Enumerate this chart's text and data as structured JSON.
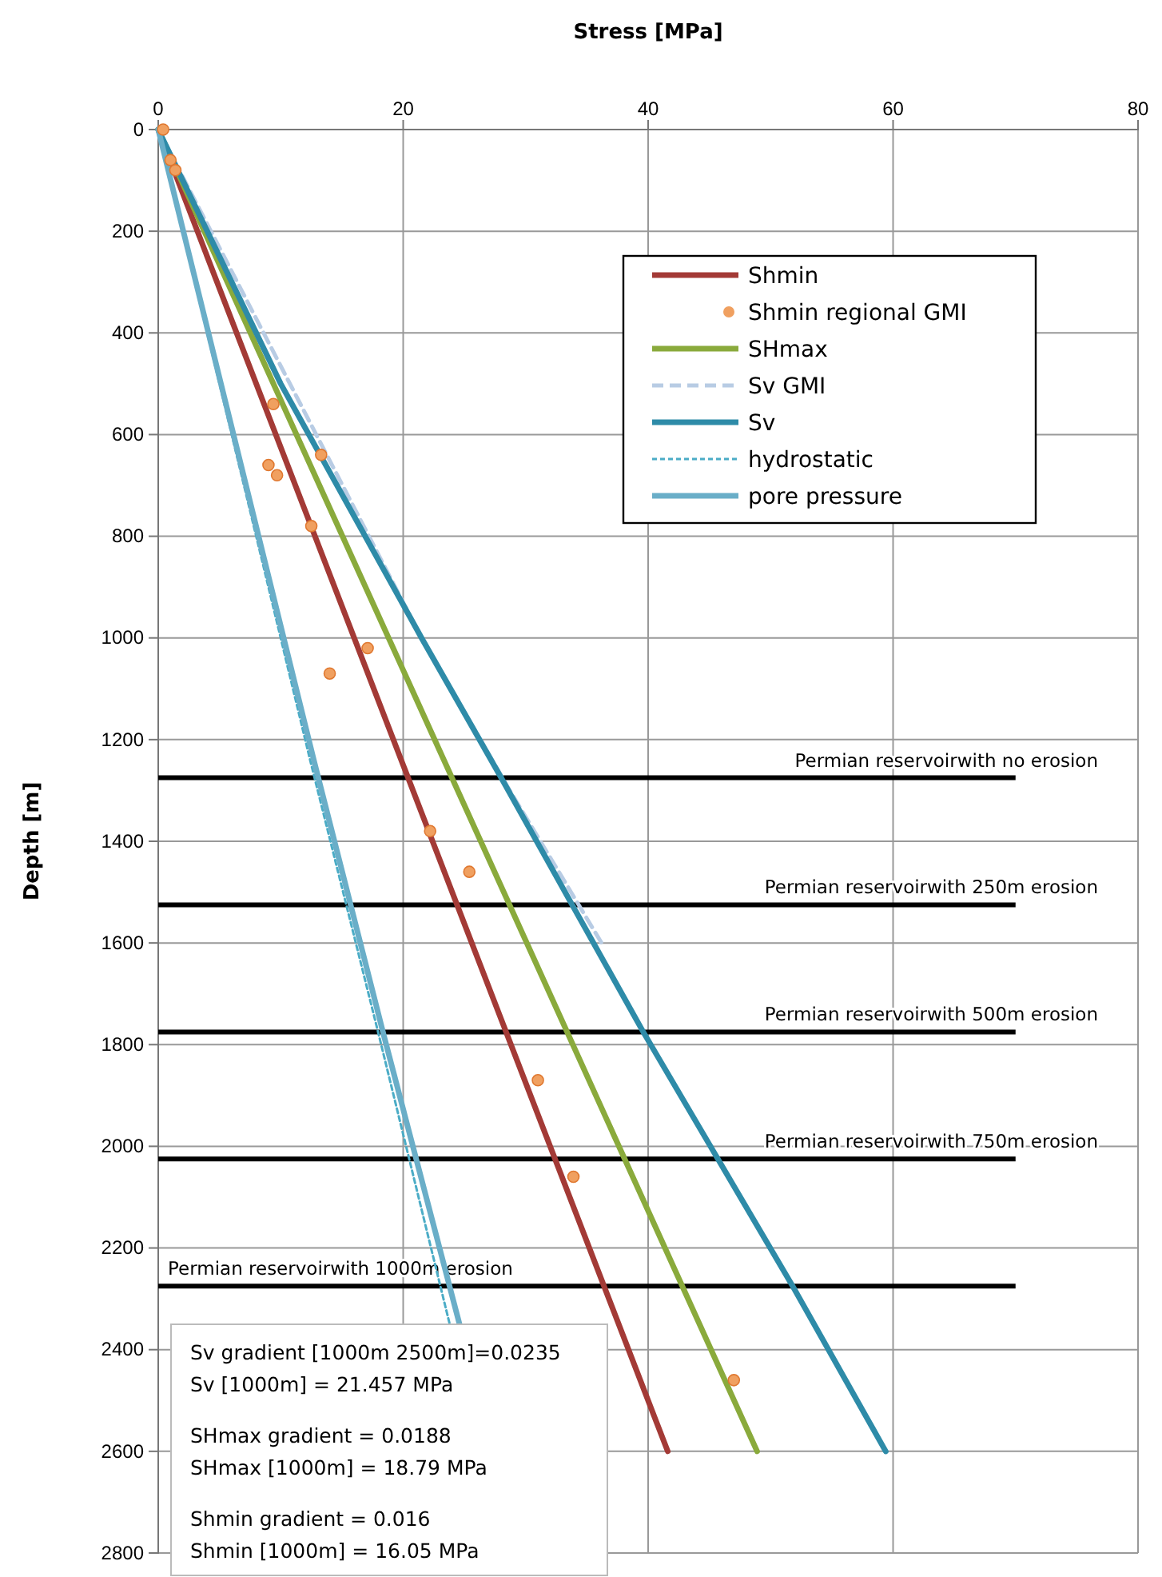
{
  "chart_data": {
    "type": "line",
    "xlabel": "Stress [MPa]",
    "ylabel": "Depth [m]",
    "xlim": [
      0,
      80
    ],
    "xticks": [
      0,
      20,
      40,
      60,
      80
    ],
    "ylim": [
      2800,
      0
    ],
    "yticks": [
      0,
      200,
      400,
      600,
      800,
      1000,
      1200,
      1400,
      1600,
      1800,
      2000,
      2200,
      2400,
      2600,
      2800
    ],
    "grid": true,
    "legend": "top right",
    "series": [
      {
        "name": "Shmin",
        "color": "#a33a36",
        "x": [
          0,
          41.6
        ],
        "values": [
          0,
          2600
        ],
        "line_style": "solid"
      },
      {
        "name": "Shmin regional GMI",
        "type": "scatter",
        "marker": "circle",
        "color": "#f0a060",
        "x": [
          0.4,
          1.0,
          1.4,
          9.4,
          13.3,
          9.0,
          9.7,
          12.5,
          17.1,
          14.0,
          22.2,
          25.4,
          31.0,
          33.9,
          47.0
        ],
        "values": [
          0,
          60,
          80,
          540,
          640,
          660,
          680,
          780,
          1020,
          1070,
          1380,
          1460,
          1870,
          2060,
          2460
        ]
      },
      {
        "name": "SHmax",
        "color": "#8aaa3c",
        "x": [
          0,
          48.9
        ],
        "values": [
          0,
          2600
        ],
        "line_style": "solid"
      },
      {
        "name": "Sv GMI",
        "color": "#b8cce4",
        "x": [
          0,
          21.5,
          28.7,
          36.2
        ],
        "values": [
          0,
          1000,
          1300,
          1600
        ],
        "line_style": "dashed"
      },
      {
        "name": "Sv",
        "color": "#2e8ba8",
        "x": [
          0,
          10,
          21.5,
          28,
          39.6,
          51.8,
          59.4
        ],
        "values": [
          0,
          500,
          1000,
          1275,
          1775,
          2275,
          2600
        ],
        "line_style": "solid"
      },
      {
        "name": "hydrostatic",
        "color": "#4bacc6",
        "x": [
          0,
          12.4,
          18.0,
          23.8
        ],
        "values": [
          0,
          1240,
          1780,
          2350
        ],
        "line_style": "dotted"
      },
      {
        "name": "pore pressure",
        "color": "#6aaec8",
        "x": [
          0,
          12.7,
          18.4,
          24.6
        ],
        "values": [
          0,
          1240,
          1780,
          2350
        ],
        "line_style": "solid"
      }
    ],
    "ref_lines": [
      {
        "axis": "y",
        "value": 1275,
        "label": "Permian reservoirwith no erosion"
      },
      {
        "axis": "y",
        "value": 1525,
        "label": "Permian reservoirwith 250m erosion"
      },
      {
        "axis": "y",
        "value": 1775,
        "label": "Permian reservoirwith 500m erosion"
      },
      {
        "axis": "y",
        "value": 2025,
        "label": "Permian reservoirwith 750m erosion"
      },
      {
        "axis": "y",
        "value": 2275,
        "label": "Permian reservoirwith 1000m erosion"
      }
    ],
    "annotations": [
      "Sv gradient [1000m 2500m]=0.0235",
      "Sv [1000m] = 21.457 MPa",
      "SHmax gradient = 0.0188",
      "SHmax [1000m] = 18.79 MPa",
      "Shmin gradient = 0.016",
      "Shmin [1000m] = 16.05 MPa"
    ]
  }
}
